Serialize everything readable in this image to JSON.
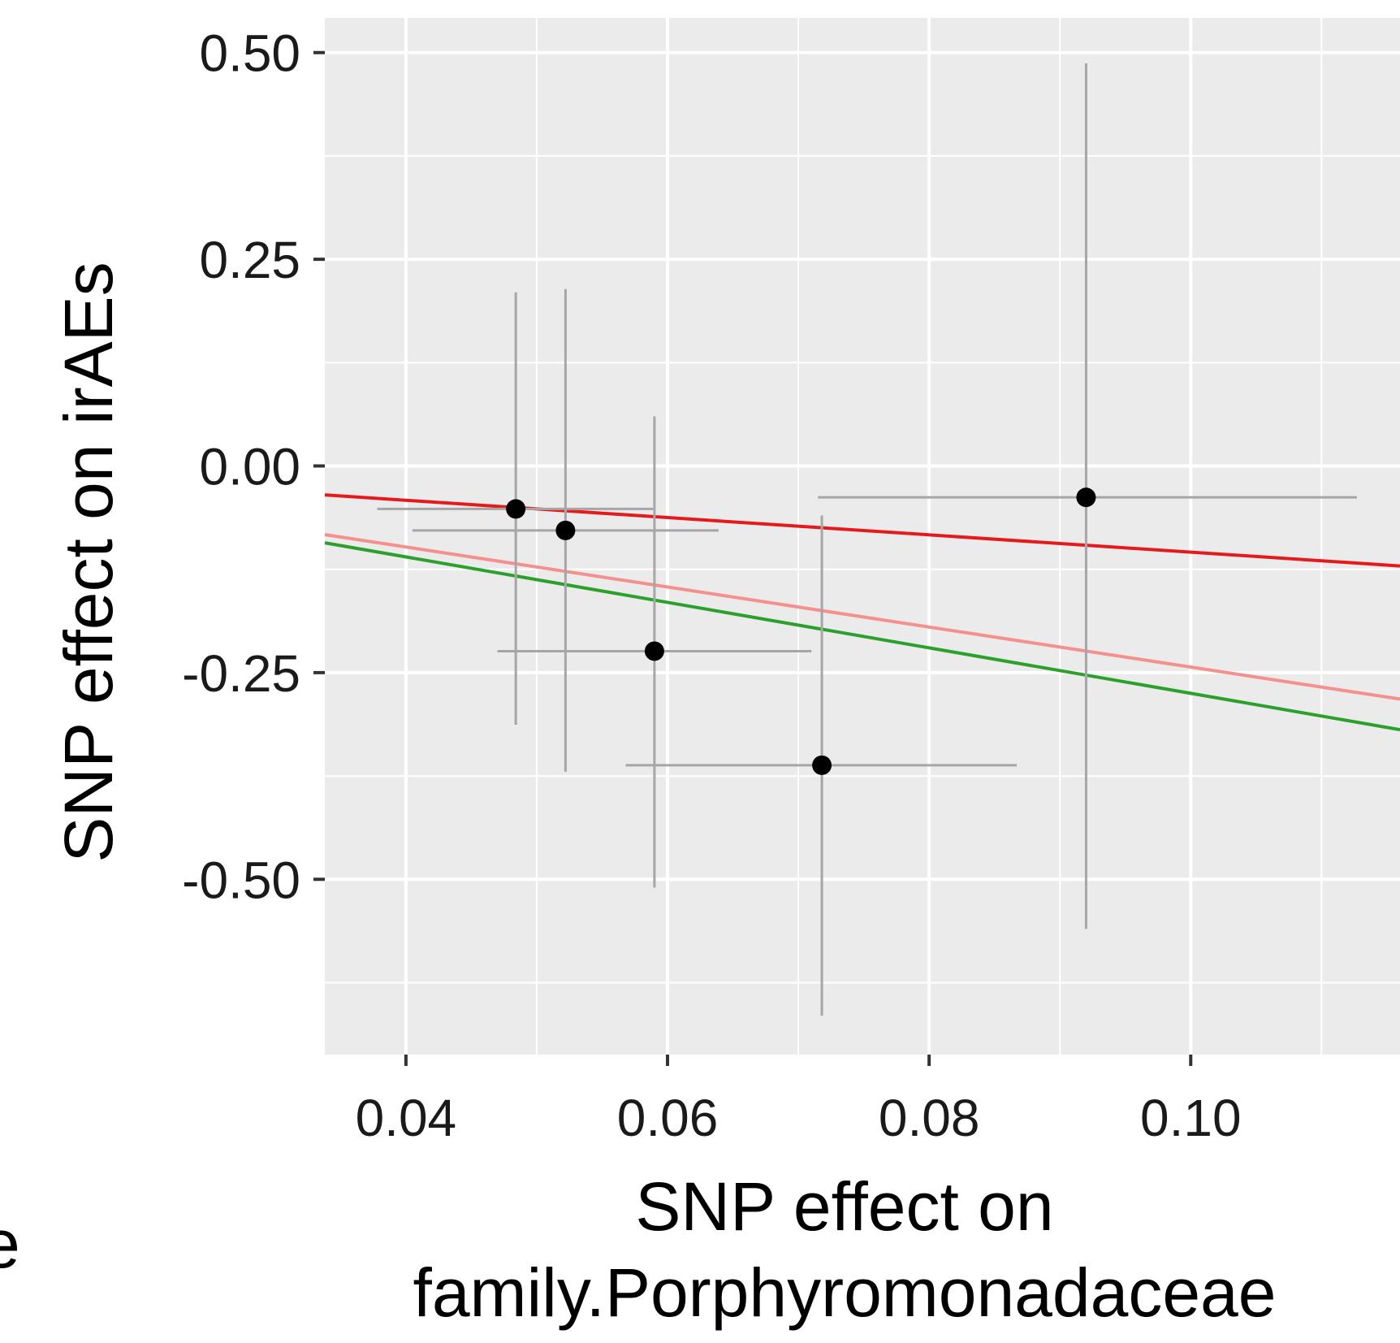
{
  "edge_fragment": "e",
  "chart_data": {
    "type": "scatter",
    "xlabel_lines": [
      "SNP effect on",
      "family.Porphyromonadaceae"
    ],
    "ylabel": "SNP effect on irAEs",
    "x_ticks": [
      {
        "value": 0.04,
        "label": "0.04"
      },
      {
        "value": 0.06,
        "label": "0.06"
      },
      {
        "value": 0.08,
        "label": "0.08"
      },
      {
        "value": 0.1,
        "label": "0.10"
      }
    ],
    "y_ticks": [
      {
        "value": 0.5,
        "label": "0.50"
      },
      {
        "value": 0.25,
        "label": "0.25"
      },
      {
        "value": 0.0,
        "label": "0.00"
      },
      {
        "value": -0.25,
        "label": "-0.25"
      },
      {
        "value": -0.5,
        "label": "-0.50"
      }
    ],
    "xlim": [
      0.0338,
      0.116
    ],
    "ylim": [
      -0.712,
      0.542
    ],
    "grid": true,
    "points": [
      {
        "x": 0.0484,
        "y": -0.052,
        "x_lo": 0.0378,
        "x_hi": 0.0589,
        "y_lo": -0.313,
        "y_hi": 0.21
      },
      {
        "x": 0.0522,
        "y": -0.078,
        "x_lo": 0.0405,
        "x_hi": 0.0639,
        "y_lo": -0.37,
        "y_hi": 0.214
      },
      {
        "x": 0.059,
        "y": -0.224,
        "x_lo": 0.047,
        "x_hi": 0.071,
        "y_lo": -0.51,
        "y_hi": 0.06
      },
      {
        "x": 0.0718,
        "y": -0.362,
        "x_lo": 0.0568,
        "x_hi": 0.0867,
        "y_lo": -0.665,
        "y_hi": -0.06
      },
      {
        "x": 0.092,
        "y": -0.038,
        "x_lo": 0.0715,
        "x_hi": 0.1127,
        "y_lo": -0.56,
        "y_hi": 0.487
      }
    ],
    "lines": [
      {
        "color": "#e41a1c",
        "x": [
          0.0338,
          0.116
        ],
        "y": [
          -0.035,
          -0.121
        ]
      },
      {
        "color": "#f4908e",
        "x": [
          0.0338,
          0.116
        ],
        "y": [
          -0.083,
          -0.282
        ]
      },
      {
        "color": "#2ca02c",
        "x": [
          0.0338,
          0.116
        ],
        "y": [
          -0.093,
          -0.319
        ]
      }
    ],
    "colors": {
      "panel_bg": "#ebebeb",
      "grid": "#ffffff",
      "point": "#000000",
      "errorbar": "#a6a6a6"
    }
  }
}
